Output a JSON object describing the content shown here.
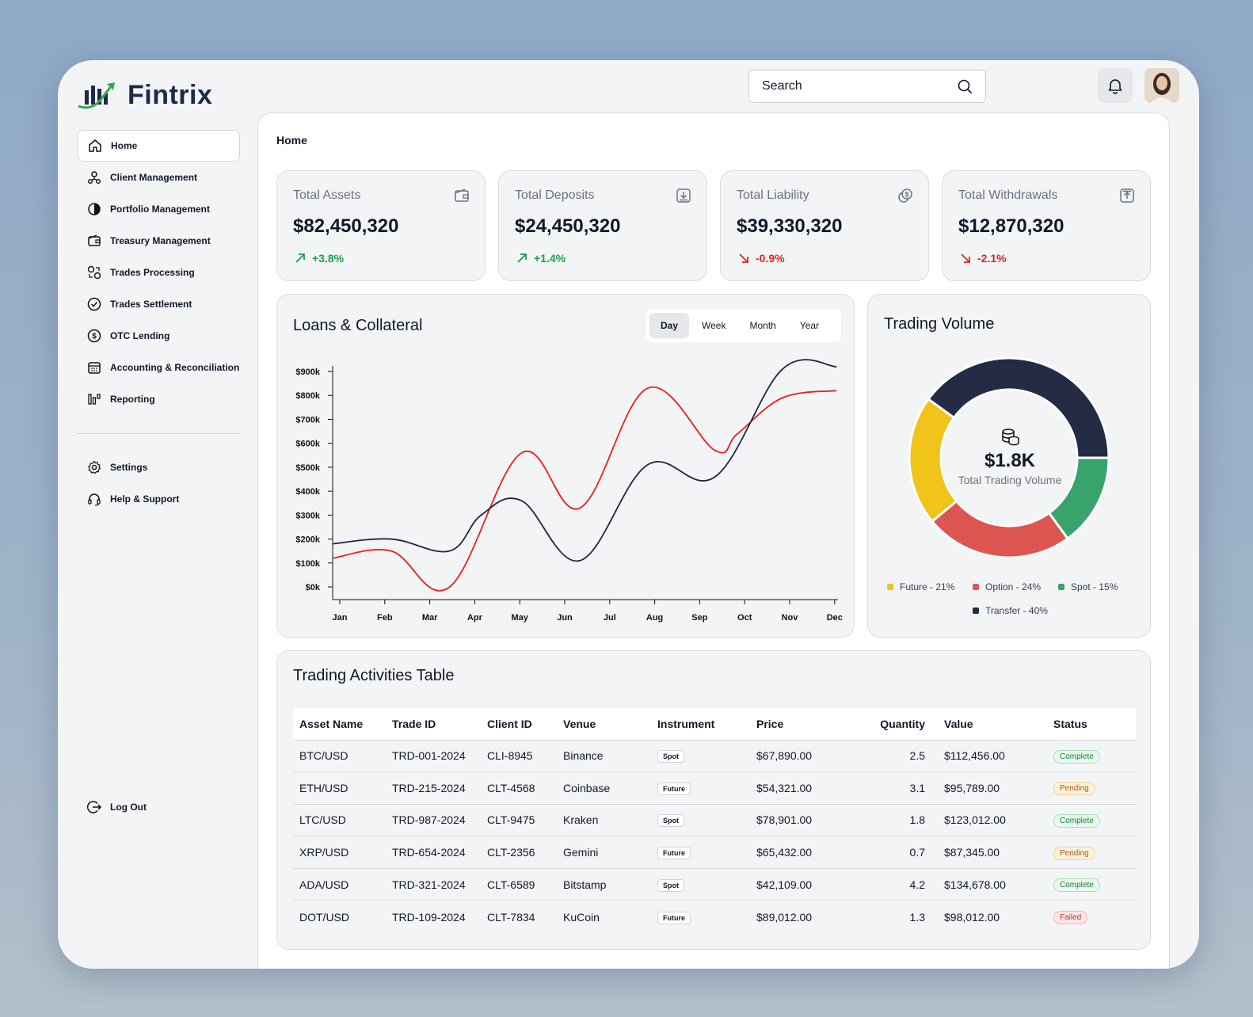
{
  "app": {
    "name": "Fintrix"
  },
  "search": {
    "placeholder": "Search"
  },
  "sidebar": {
    "items": [
      {
        "label": "Home",
        "icon": "home-icon"
      },
      {
        "label": "Client Management",
        "icon": "users-icon"
      },
      {
        "label": "Portfolio Management",
        "icon": "pie-chart-icon"
      },
      {
        "label": "Treasury Management",
        "icon": "wallet-icon"
      },
      {
        "label": "Trades Processing",
        "icon": "exchange-icon"
      },
      {
        "label": "Trades Settlement",
        "icon": "check-circle-icon"
      },
      {
        "label": "OTC Lending",
        "icon": "dollar-coin-icon"
      },
      {
        "label": "Accounting & Reconciliation",
        "icon": "calendar-icon"
      },
      {
        "label": "Reporting",
        "icon": "bar-chart-icon"
      }
    ],
    "bottom_items": [
      {
        "label": "Settings",
        "icon": "gear-icon"
      },
      {
        "label": "Help & Support",
        "icon": "headset-icon"
      }
    ],
    "logout": {
      "label": "Log Out",
      "icon": "logout-icon"
    }
  },
  "breadcrumb": "Home",
  "stats": [
    {
      "title": "Total Assets",
      "value": "$82,450,320",
      "change": "+3.8%",
      "direction": "up",
      "icon": "wallet-icon"
    },
    {
      "title": "Total Deposits",
      "value": "$24,450,320",
      "change": "+1.4%",
      "direction": "up",
      "icon": "deposit-icon"
    },
    {
      "title": "Total Liability",
      "value": "$39,330,320",
      "change": "-0.9%",
      "direction": "down",
      "icon": "coins-icon"
    },
    {
      "title": "Total Withdrawals",
      "value": "$12,870,320",
      "change": "-2.1%",
      "direction": "down",
      "icon": "withdraw-icon"
    }
  ],
  "loans_chart": {
    "title": "Loans & Collateral",
    "tabs": [
      "Day",
      "Week",
      "Month",
      "Year"
    ],
    "active_tab": "Day"
  },
  "volume_chart": {
    "title": "Trading Volume",
    "center_value": "$1.8K",
    "center_label": "Total Trading Volume",
    "legend": [
      "Future - 21%",
      "Option - 24%",
      "Spot - 15%",
      "Transfer - 40%"
    ]
  },
  "chart_data": [
    {
      "type": "line",
      "title": "Loans & Collateral",
      "categories": [
        "Jan",
        "Feb",
        "Mar",
        "Apr",
        "May",
        "Jun",
        "Jul",
        "Aug",
        "Sep",
        "Oct",
        "Nov",
        "Dec"
      ],
      "y_ticks": [
        "$0k",
        "$100k",
        "$200k",
        "$300k",
        "$400k",
        "$500k",
        "$600k",
        "$700k",
        "$800k",
        "$900k"
      ],
      "ylim": [
        0,
        900000
      ],
      "series": [
        {
          "color": "#ef1c1c",
          "values": [
            120000,
            150000,
            0,
            560000,
            330000,
            830000,
            570000,
            640000,
            790000,
            820000
          ],
          "x": [
            0,
            1.3,
            2.6,
            4.2,
            5.5,
            7.0,
            8.5,
            9.0,
            10.0,
            11.2
          ]
        },
        {
          "color": "#1e2540",
          "values": [
            180000,
            200000,
            150000,
            300000,
            360000,
            110000,
            510000,
            460000,
            910000,
            920000
          ],
          "x": [
            0,
            1.3,
            2.6,
            3.3,
            4.2,
            5.5,
            7.0,
            8.5,
            10.0,
            11.2
          ]
        }
      ]
    },
    {
      "type": "pie",
      "title": "Trading Volume",
      "categories": [
        "Future",
        "Option",
        "Spot",
        "Transfer"
      ],
      "values": [
        21,
        24,
        15,
        40
      ],
      "colors": [
        "#f0c419",
        "#dd5550",
        "#38a36a",
        "#232b45"
      ]
    }
  ],
  "colors": {
    "accent": "#1e2a4a",
    "up": "#16a34a",
    "down": "#dc2626"
  },
  "table": {
    "title": "Trading Activities Table",
    "columns": [
      "Asset Name",
      "Trade ID",
      "Client ID",
      "Venue",
      "Instrument",
      "Price",
      "Quantity",
      "Value",
      "Status"
    ],
    "rows": [
      [
        "BTC/USD",
        "TRD-001-2024",
        "CLI-8945",
        "Binance",
        "Spot",
        "$67,890.00",
        "2.5",
        "$112,456.00",
        "Complete"
      ],
      [
        "ETH/USD",
        "TRD-215-2024",
        "CLT-4568",
        "Coinbase",
        "Future",
        "$54,321.00",
        "3.1",
        "$95,789.00",
        "Pending"
      ],
      [
        "LTC/USD",
        "TRD-987-2024",
        "CLT-9475",
        "Kraken",
        "Spot",
        "$78,901.00",
        "1.8",
        "$123,012.00",
        "Complete"
      ],
      [
        "XRP/USD",
        "TRD-654-2024",
        "CLT-2356",
        "Gemini",
        "Future",
        "$65,432.00",
        "0.7",
        "$87,345.00",
        "Pending"
      ],
      [
        "ADA/USD",
        "TRD-321-2024",
        "CLT-6589",
        "Bitstamp",
        "Spot",
        "$42,109.00",
        "4.2",
        "$134,678.00",
        "Complete"
      ],
      [
        "DOT/USD",
        "TRD-109-2024",
        "CLT-7834",
        "KuCoin",
        "Future",
        "$89,012.00",
        "1.3",
        "$98,012.00",
        "Failed"
      ]
    ]
  }
}
